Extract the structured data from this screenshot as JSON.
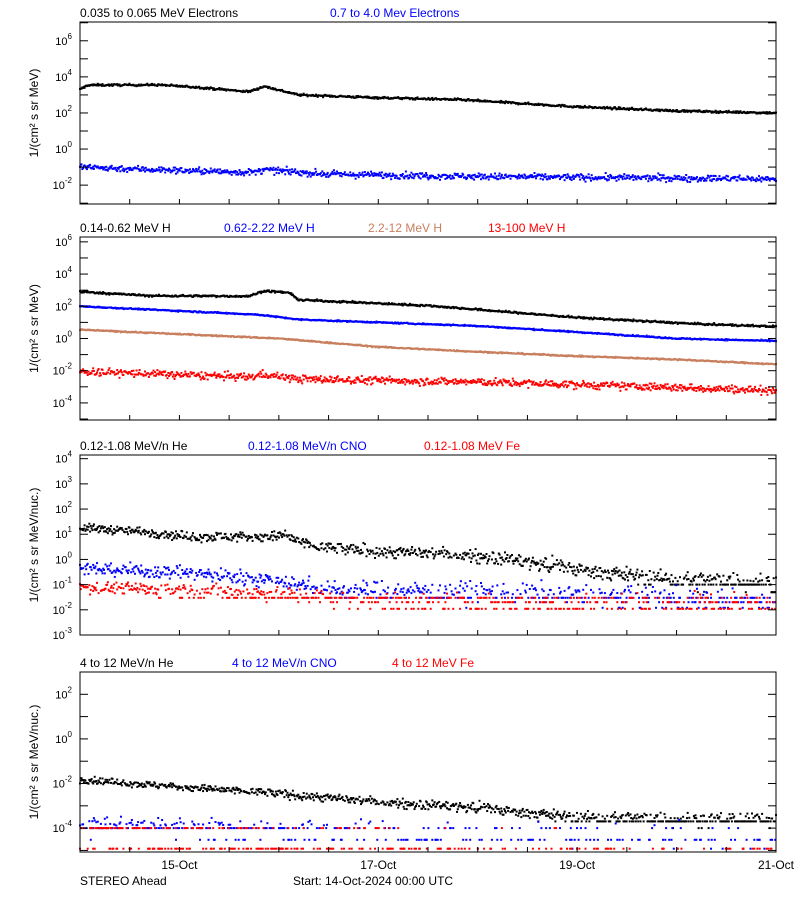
{
  "chart_data": [
    {
      "type": "scatter",
      "ylabel": "1/(cm² s sr MeV)",
      "yscale": "log",
      "ylim": [
        0.0009,
        11000000
      ],
      "ytick_exponents": [
        6,
        4,
        2,
        0,
        -2
      ],
      "series": [
        {
          "name": "0.035 to 0.065 MeV Electrons",
          "color": "#000000",
          "trend": [
            [
              0,
              2000
            ],
            [
              0.08,
              3500
            ],
            [
              0.8,
              3600
            ],
            [
              1.2,
              2600
            ],
            [
              1.7,
              1500
            ],
            [
              1.85,
              3000
            ],
            [
              2.2,
              1000
            ],
            [
              3,
              700
            ],
            [
              3.8,
              550
            ],
            [
              5,
              220
            ],
            [
              6,
              130
            ],
            [
              7,
              100
            ]
          ]
        },
        {
          "name": "0.7 to 4.0 Mev Electrons",
          "color": "#0000ff",
          "trend": [
            [
              0,
              0.1
            ],
            [
              1,
              0.065
            ],
            [
              1.75,
              0.05
            ],
            [
              1.85,
              0.07
            ],
            [
              2.5,
              0.04
            ],
            [
              4,
              0.03
            ],
            [
              7,
              0.022
            ]
          ]
        }
      ]
    },
    {
      "type": "scatter",
      "ylabel": "1/(cm² s sr MeV)",
      "yscale": "log",
      "ylim": [
        8.7e-06,
        2000000
      ],
      "ytick_exponents": [
        6,
        4,
        2,
        0,
        -2,
        -4
      ],
      "series": [
        {
          "name": "0.14-0.62 MeV H",
          "color": "#000000",
          "trend": [
            [
              0,
              800
            ],
            [
              0.7,
              450
            ],
            [
              1.7,
              420
            ],
            [
              1.85,
              900
            ],
            [
              2.1,
              700
            ],
            [
              2.2,
              250
            ],
            [
              3.5,
              110
            ],
            [
              5,
              20
            ],
            [
              6.2,
              8
            ],
            [
              7,
              5.5
            ]
          ]
        },
        {
          "name": "0.62-2.22 MeV H",
          "color": "#0000ff",
          "trend": [
            [
              0,
              100
            ],
            [
              1.8,
              30
            ],
            [
              2.2,
              15
            ],
            [
              3,
              10
            ],
            [
              4,
              6
            ],
            [
              5,
              2.5
            ],
            [
              6,
              1
            ],
            [
              7,
              0.7
            ]
          ]
        },
        {
          "name": "2.2-12 MeV H",
          "color": "#c87f5e",
          "trend": [
            [
              0,
              3.5
            ],
            [
              2,
              1
            ],
            [
              3,
              0.3
            ],
            [
              4,
              0.15
            ],
            [
              5,
              0.08
            ],
            [
              6,
              0.05
            ],
            [
              7,
              0.025
            ]
          ]
        },
        {
          "name": "13-100 MeV H",
          "color": "#ff0000",
          "trend": [
            [
              0,
              0.009
            ],
            [
              1.7,
              0.004
            ],
            [
              1.85,
              0.006
            ],
            [
              2.2,
              0.003
            ],
            [
              4,
              0.002
            ],
            [
              6,
              0.0009
            ],
            [
              7,
              0.0006
            ]
          ]
        }
      ]
    },
    {
      "type": "scatter",
      "ylabel": "1/(cm² s sr MeV/nuc.)",
      "yscale": "log",
      "ylim": [
        0.001,
        14000
      ],
      "ytick_exponents": [
        4,
        3,
        2,
        1,
        0,
        -1,
        -2,
        -3
      ],
      "series": [
        {
          "name": "0.12-1.08 MeV/n He",
          "color": "#000000",
          "trend": [
            [
              0,
              18
            ],
            [
              0.6,
              13
            ],
            [
              1.1,
              8
            ],
            [
              2.0,
              8
            ],
            [
              2.05,
              10
            ],
            [
              2.2,
              5
            ],
            [
              2.4,
              3
            ],
            [
              3,
              2
            ],
            [
              3.5,
              1.8
            ],
            [
              4.1,
              1.3
            ],
            [
              5,
              0.4
            ],
            [
              6,
              0.15
            ],
            [
              7,
              0.12
            ]
          ],
          "levels": [
            0.1,
            0.05
          ]
        },
        {
          "name": "0.12-1.08 MeV/n CNO",
          "color": "#0000ff",
          "trend": [
            [
              0,
              0.45
            ],
            [
              1,
              0.3
            ],
            [
              2,
              0.15
            ],
            [
              2.5,
              0.06
            ],
            [
              4,
              0.05
            ],
            [
              7,
              0.02
            ]
          ],
          "levels": [
            0.03,
            0.02,
            0.012
          ]
        },
        {
          "name": "0.12-1.08 MeV Fe",
          "color": "#ff0000",
          "trend": [
            [
              0,
              0.08
            ],
            [
              1,
              0.06
            ],
            [
              2,
              0.04
            ],
            [
              3,
              0.02
            ],
            [
              7,
              0.015
            ]
          ],
          "levels": [
            0.03,
            0.02,
            0.011
          ]
        }
      ]
    },
    {
      "type": "scatter",
      "ylabel": "1/(cm² s sr MeV/nuc.)",
      "yscale": "log",
      "ylim": [
        8.5e-06,
        1000
      ],
      "ytick_exponents": [
        2,
        0,
        -2,
        -4
      ],
      "xticks": [
        {
          "day": 1,
          "label": "15-Oct"
        },
        {
          "day": 3,
          "label": "17-Oct"
        },
        {
          "day": 5,
          "label": "19-Oct"
        },
        {
          "day": 7,
          "label": "21-Oct"
        }
      ],
      "series": [
        {
          "name": "4 to 12 MeV/n He",
          "color": "#000000",
          "trend": [
            [
              0,
              0.015
            ],
            [
              1,
              0.007
            ],
            [
              2,
              0.0035
            ],
            [
              3,
              0.0015
            ],
            [
              4,
              0.0008
            ],
            [
              5,
              0.0003
            ],
            [
              6,
              0.00025
            ],
            [
              7,
              0.00025
            ]
          ],
          "levels": [
            0.0002,
            0.0001
          ]
        },
        {
          "name": "4 to 12 MeV/n CNO",
          "color": "#0000ff",
          "trend": [
            [
              0,
              0.00015
            ],
            [
              2,
              0.0001
            ],
            [
              4,
              6e-05
            ],
            [
              7,
              3e-05
            ]
          ],
          "levels": [
            0.0001,
            3e-05,
            1.2e-05
          ]
        },
        {
          "name": "4 to 12 MeV Fe",
          "color": "#ff0000",
          "trend": [
            [
              0,
              8e-05
            ],
            [
              7,
              3e-05
            ]
          ],
          "levels": [
            0.0001,
            1.2e-05
          ]
        }
      ]
    }
  ],
  "xaxis": {
    "range_days": [
      0,
      7
    ],
    "minor_tick_hours": 12
  },
  "footer": {
    "left": "STEREO Ahead",
    "center": "Start: 14-Oct-2024 00:00 UTC"
  }
}
